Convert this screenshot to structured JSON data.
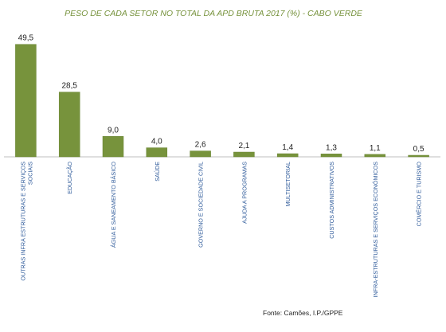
{
  "chart_data": {
    "type": "bar",
    "title": "PESO DE CADA SETOR NO TOTAL DA APD BRUTA 2017  (%) - CABO VERDE",
    "categories": [
      "OUTRAS INFRA ESTRUTURAS E SERVIÇOS SOCIAIS",
      "EDUCAÇÃO",
      "ÁGUA E SANEAMENTO BÁSICO",
      "SAÚDE",
      "GOVERNO E SOCIEDADE CIVIL",
      "AJUDA A PROGRAMAS",
      "MULTISETORIAL",
      "CUSTOS ADMINISTRATIVOS",
      "INFRA-ESTRUTURAS E SERVIÇOS ECONÓMICOS",
      "COMÉRCIO E TURISMO"
    ],
    "values": [
      49.5,
      28.5,
      9.0,
      4.0,
      2.6,
      2.1,
      1.4,
      1.3,
      1.1,
      0.5
    ],
    "value_labels": [
      "49,5",
      "28,5",
      "9,0",
      "4,0",
      "2,6",
      "2,1",
      "1,4",
      "1,3",
      "1,1",
      "0,5"
    ],
    "ylim": [
      0,
      55
    ],
    "grid": false,
    "legend": "none",
    "bar_color": "#77933c",
    "title_color": "#76923c",
    "category_label_color": "#2e5a9a"
  },
  "source_note": "Fonte: Camões, I.P./GPPE"
}
